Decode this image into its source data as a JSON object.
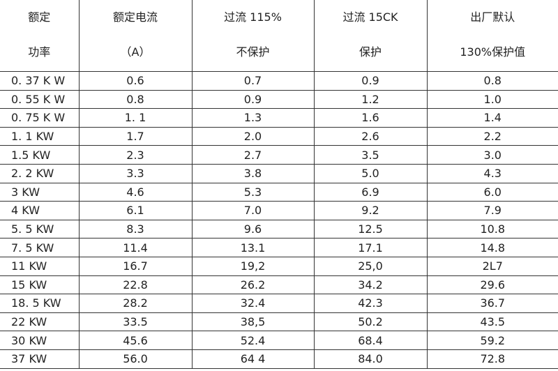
{
  "table": {
    "header": [
      [
        "额定",
        "功率"
      ],
      [
        "额定电流",
        "（A）"
      ],
      [
        "过流  115%",
        "不保护"
      ],
      [
        "过流  15CK",
        "保护"
      ],
      [
        "出厂默认",
        "130%保护值"
      ]
    ],
    "rows": [
      [
        "0. 37 K W",
        "0.6",
        "0.7",
        "0.9",
        "0.8"
      ],
      [
        "0. 55 K W",
        "0.8",
        "0.9",
        "1.2",
        "1.0"
      ],
      [
        "0. 75 K W",
        "1. 1",
        "1.3",
        "1.6",
        "1.4"
      ],
      [
        "1. 1 KW",
        "1.7",
        "2.0",
        "2.6",
        "2.2"
      ],
      [
        "1.5 KW",
        "2.3",
        "2.7",
        "3.5",
        "3.0"
      ],
      [
        "2. 2 KW",
        "3.3",
        "3.8",
        "5.0",
        "4.3"
      ],
      [
        "3 KW",
        "4.6",
        "5.3",
        "6.9",
        "6.0"
      ],
      [
        "4 KW",
        "6.1",
        "7.0",
        "9.2",
        "7.9"
      ],
      [
        "5. 5 KW",
        "8.3",
        "9.6",
        "12.5",
        "10.8"
      ],
      [
        "7. 5 KW",
        "11.4",
        "13.1",
        "17.1",
        "14.8"
      ],
      [
        "11 KW",
        "16.7",
        "19,2",
        "25,0",
        "2L7"
      ],
      [
        "15 KW",
        "22.8",
        "26.2",
        "34.2",
        "29.6"
      ],
      [
        "18. 5 KW",
        "28.2",
        "32.4",
        "42.3",
        "36.7"
      ],
      [
        "22 KW",
        "33.5",
        "38,5",
        "50.2",
        "43.5"
      ],
      [
        "30 KW",
        "45.6",
        "52.4",
        "68.4",
        "59.2"
      ],
      [
        "37 KW",
        "56.0",
        "64 4",
        "84.0",
        "72.8"
      ]
    ]
  }
}
